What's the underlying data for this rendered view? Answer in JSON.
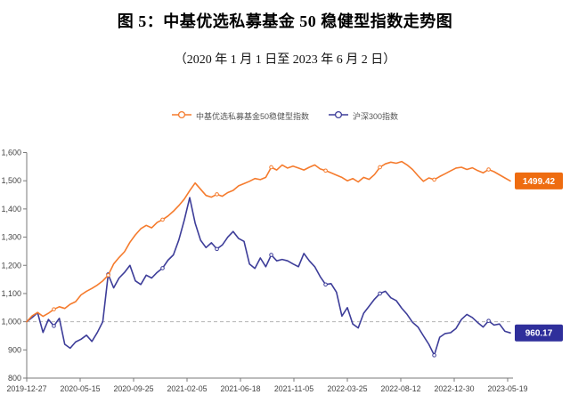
{
  "page": {
    "title": "图 5：中基优选私募基金 50 稳健型指数走势图",
    "subtitle": "（2020 年 1 月 1 日至 2023 年 6 月 2 日）"
  },
  "colors": {
    "fund_line": "#f57b2d",
    "fund_label_bg": "#ee6c10",
    "csi_line": "#3d3d99",
    "csi_label_bg": "#2f2f9b",
    "axis_line": "#7a7a7a",
    "tick_text": "#444444",
    "dashed_line": "#b5b5b5",
    "legend_text": "#555555",
    "end_label_text": "#ffffff"
  },
  "chart_data": {
    "type": "line",
    "y_min": 800,
    "y_max": 1600,
    "y_tick_labels": [
      "1,600",
      "1,500",
      "1,400",
      "1,300",
      "1,200",
      "1,100",
      "1,000",
      "900",
      "800"
    ],
    "y_tick_values": [
      1600,
      1500,
      1400,
      1300,
      1200,
      1100,
      1000,
      900,
      800
    ],
    "x_tick_labels": [
      "2019-12-27",
      "2020-05-15",
      "2020-09-25",
      "2021-02-05",
      "2021-06-18",
      "2021-11-05",
      "2022-03-25",
      "2022-08-12",
      "2022-12-30",
      "2023-05-19"
    ],
    "baseline_value": 1000,
    "grid": "off",
    "legend_position": "top",
    "series": [
      {
        "name": "中基优选私募基金50稳健型指数",
        "end_label": "1499.42",
        "last_value": 1499.42,
        "values": [
          1000,
          1021,
          1033,
          1019,
          1030,
          1044,
          1053,
          1047,
          1062,
          1071,
          1095,
          1108,
          1118,
          1130,
          1145,
          1165,
          1205,
          1228,
          1248,
          1282,
          1308,
          1330,
          1342,
          1333,
          1352,
          1362,
          1375,
          1392,
          1412,
          1435,
          1465,
          1492,
          1470,
          1448,
          1442,
          1452,
          1445,
          1458,
          1466,
          1482,
          1490,
          1498,
          1508,
          1504,
          1512,
          1548,
          1538,
          1556,
          1545,
          1552,
          1545,
          1538,
          1548,
          1556,
          1542,
          1536,
          1528,
          1520,
          1512,
          1500,
          1508,
          1496,
          1512,
          1505,
          1522,
          1548,
          1560,
          1566,
          1562,
          1568,
          1556,
          1540,
          1518,
          1498,
          1510,
          1504,
          1515,
          1525,
          1535,
          1545,
          1548,
          1540,
          1546,
          1536,
          1528,
          1540,
          1532,
          1521,
          1510,
          1499.42
        ]
      },
      {
        "name": "沪深300指数",
        "end_label": "960.17",
        "last_value": 960.17,
        "values": [
          1000,
          1015,
          1032,
          962,
          1008,
          985,
          1012,
          920,
          906,
          928,
          938,
          952,
          930,
          962,
          1000,
          1168,
          1120,
          1155,
          1175,
          1200,
          1145,
          1132,
          1165,
          1155,
          1175,
          1190,
          1218,
          1237,
          1290,
          1360,
          1440,
          1350,
          1289,
          1263,
          1280,
          1258,
          1272,
          1300,
          1320,
          1295,
          1285,
          1205,
          1189,
          1226,
          1195,
          1237,
          1216,
          1221,
          1216,
          1205,
          1195,
          1242,
          1216,
          1195,
          1160,
          1132,
          1135,
          1105,
          1020,
          1050,
          992,
          978,
          1030,
          1055,
          1080,
          1100,
          1108,
          1085,
          1075,
          1048,
          1026,
          998,
          981,
          950,
          920,
          881,
          945,
          958,
          961,
          976,
          1008,
          1026,
          1015,
          997,
          981,
          1003,
          988,
          992,
          966,
          960.17
        ]
      }
    ]
  }
}
